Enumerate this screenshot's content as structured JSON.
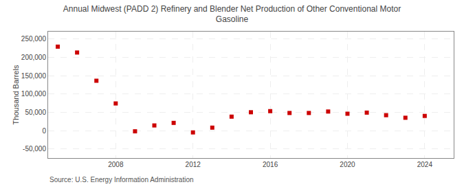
{
  "chart_data": {
    "type": "scatter",
    "title": "Annual Midwest (PADD 2) Refinery and Blender Net Production of Other Conventional Motor\nGasoline",
    "ylabel": "Thousand Barrels",
    "annotations": [
      "Source: U.S. Energy Information Administration"
    ],
    "x": [
      2005,
      2006,
      2007,
      2008,
      2009,
      2010,
      2011,
      2012,
      2013,
      2014,
      2015,
      2016,
      2017,
      2018,
      2019,
      2020,
      2021,
      2022,
      2023,
      2024
    ],
    "values": [
      229000,
      213000,
      136000,
      74000,
      -2000,
      14000,
      21000,
      -5000,
      8000,
      38000,
      50000,
      53000,
      48000,
      48000,
      52000,
      46000,
      49000,
      42000,
      35000,
      40000
    ],
    "color": "#cc0000",
    "marker": "square",
    "ylim": [
      -75000,
      270000
    ],
    "yticks": [
      {
        "value": -50000,
        "label": "-50,000"
      },
      0,
      {
        "value": 50000,
        "label": "50,000"
      },
      {
        "value": 100000,
        "label": "100,000"
      },
      {
        "value": 150000,
        "label": "150,000"
      },
      {
        "value": 200000,
        "label": "200,000"
      },
      {
        "value": 250000,
        "label": "250,000"
      }
    ],
    "xlim": [
      2004.5,
      2025.5
    ],
    "xticks": [
      2008,
      2012,
      2016,
      2020,
      2024
    ],
    "grid": true
  }
}
